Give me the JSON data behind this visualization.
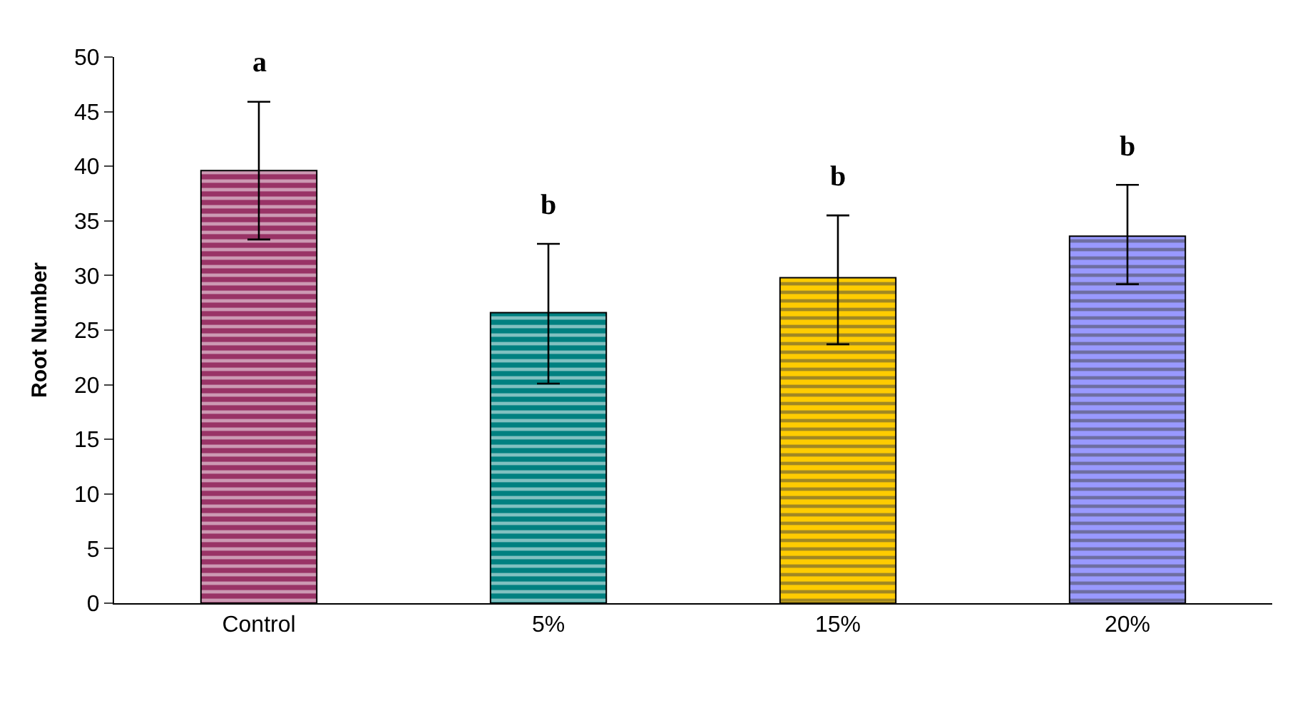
{
  "chart_data": {
    "type": "bar",
    "ylabel": "Root Number",
    "categories": [
      "Control",
      "5%",
      "15%",
      "20%"
    ],
    "values": [
      39.6,
      26.6,
      29.8,
      33.6
    ],
    "colors": [
      "#993366",
      "#008080",
      "#ffcc00",
      "#9999ff"
    ],
    "errors": [
      [
        33.3,
        45.9
      ],
      [
        20.1,
        32.9
      ],
      [
        23.7,
        35.5
      ],
      [
        29.2,
        38.3
      ]
    ],
    "annotations": [
      "a",
      "b",
      "b",
      "b"
    ],
    "ylim": [
      0,
      50
    ],
    "yticks": [
      0,
      5,
      10,
      15,
      20,
      25,
      30,
      35,
      40,
      45,
      50
    ]
  }
}
